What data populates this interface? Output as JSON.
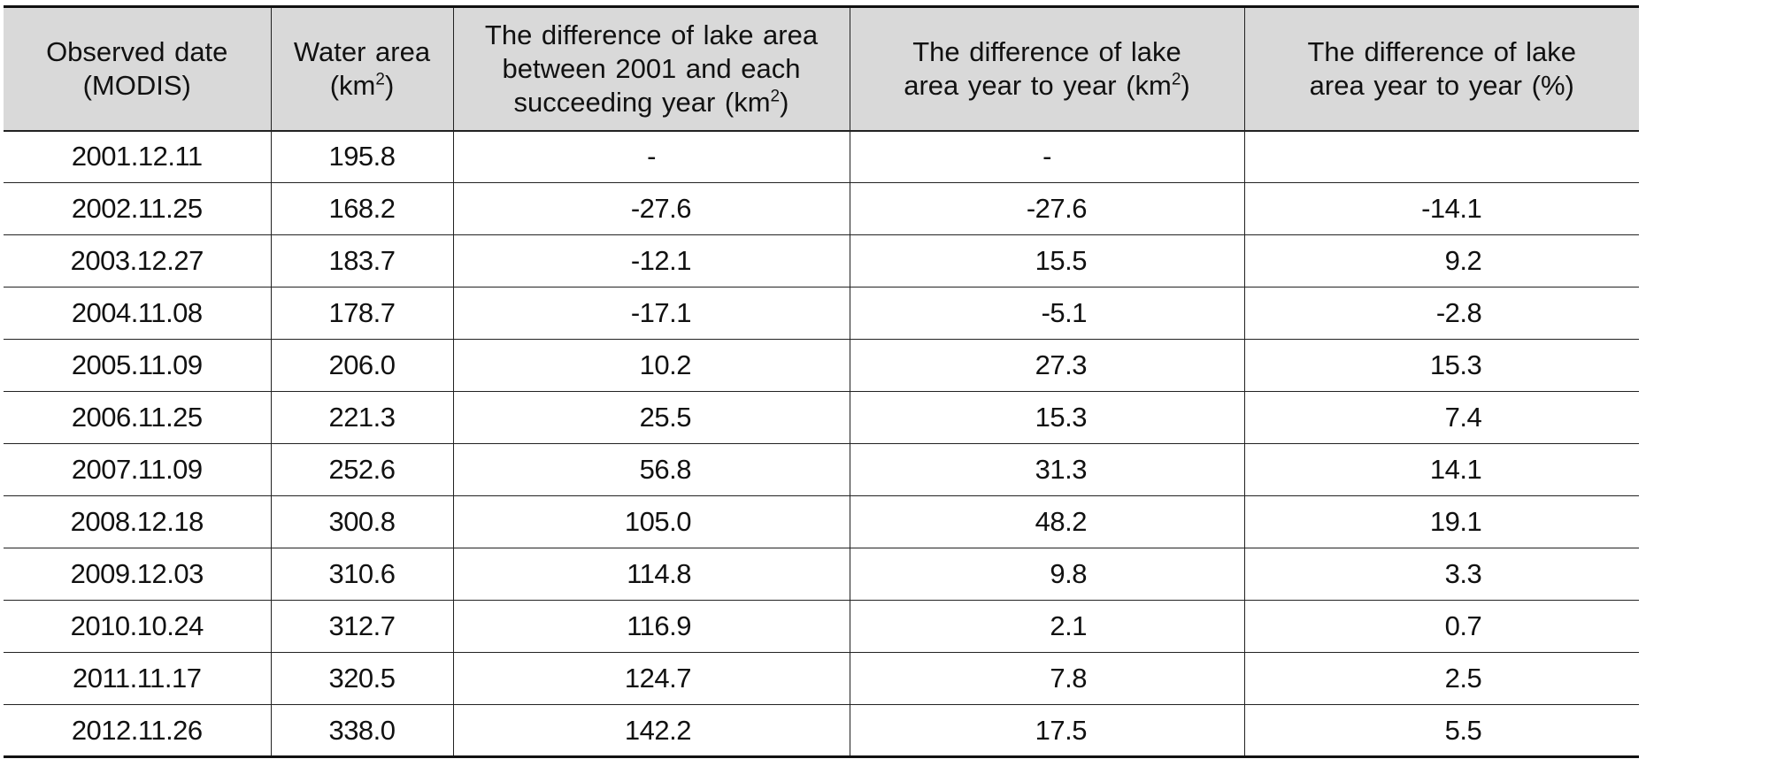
{
  "table": {
    "headers": [
      {
        "line1": "Observed date",
        "line2": "(MODIS)"
      },
      {
        "line1": "Water area",
        "line2_pre": "(km",
        "line2_sup": "2",
        "line2_post": ")"
      },
      {
        "line1": "The difference of lake area",
        "line2": "between 2001 and each",
        "line3_pre": "succeeding year (km",
        "line3_sup": "2",
        "line3_post": ")"
      },
      {
        "line1": "The difference of lake",
        "line2_pre": "area year to year (km",
        "line2_sup": "2",
        "line2_post": ")"
      },
      {
        "line1": "The difference of lake",
        "line2": "area year to year (%)"
      }
    ],
    "rows": [
      {
        "date": "2001.12.11",
        "area": "195.8",
        "diff2001": "-",
        "diffYear": "-",
        "diffPct": ""
      },
      {
        "date": "2002.11.25",
        "area": "168.2",
        "diff2001": "-27.6",
        "diffYear": "-27.6",
        "diffPct": "-14.1"
      },
      {
        "date": "2003.12.27",
        "area": "183.7",
        "diff2001": "-12.1",
        "diffYear": "15.5",
        "diffPct": "9.2"
      },
      {
        "date": "2004.11.08",
        "area": "178.7",
        "diff2001": "-17.1",
        "diffYear": "-5.1",
        "diffPct": "-2.8"
      },
      {
        "date": "2005.11.09",
        "area": "206.0",
        "diff2001": "10.2",
        "diffYear": "27.3",
        "diffPct": "15.3"
      },
      {
        "date": "2006.11.25",
        "area": "221.3",
        "diff2001": "25.5",
        "diffYear": "15.3",
        "diffPct": "7.4"
      },
      {
        "date": "2007.11.09",
        "area": "252.6",
        "diff2001": "56.8",
        "diffYear": "31.3",
        "diffPct": "14.1"
      },
      {
        "date": "2008.12.18",
        "area": "300.8",
        "diff2001": "105.0",
        "diffYear": "48.2",
        "diffPct": "19.1"
      },
      {
        "date": "2009.12.03",
        "area": "310.6",
        "diff2001": "114.8",
        "diffYear": "9.8",
        "diffPct": "3.3"
      },
      {
        "date": "2010.10.24",
        "area": "312.7",
        "diff2001": "116.9",
        "diffYear": "2.1",
        "diffPct": "0.7"
      },
      {
        "date": "2011.11.17",
        "area": "320.5",
        "diff2001": "124.7",
        "diffYear": "7.8",
        "diffPct": "2.5"
      },
      {
        "date": "2012.11.26",
        "area": "338.0",
        "diff2001": "142.2",
        "diffYear": "17.5",
        "diffPct": "5.5"
      }
    ]
  }
}
